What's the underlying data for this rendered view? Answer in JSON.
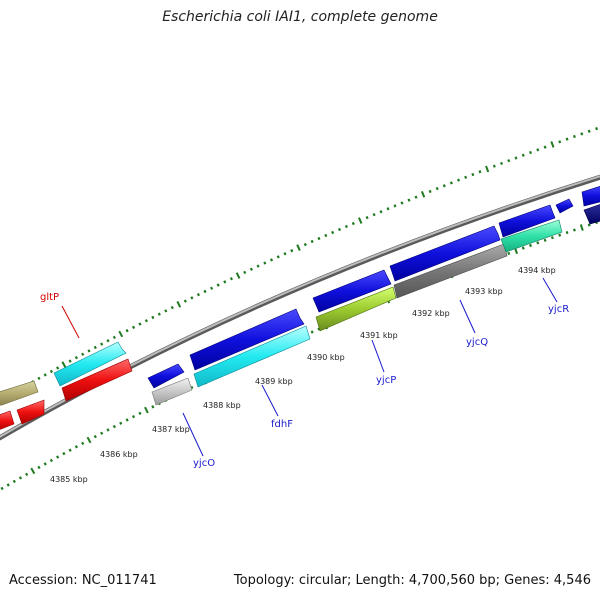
{
  "title": "Escherichia coli IAI1, complete genome",
  "footer": {
    "accession": "Accession: NC_011741",
    "stats": "Topology: circular; Length: 4,700,560 bp; Genes: 4,546"
  },
  "kbp_labels": [
    "4385 kbp",
    "4386 kbp",
    "4387 kbp",
    "4388 kbp",
    "4389 kbp",
    "4390 kbp",
    "4391 kbp",
    "4392 kbp",
    "4393 kbp",
    "4394 kbp"
  ],
  "gene_labels": {
    "gltP": "gltP",
    "yjcO": "yjcO",
    "fdhF": "fdhF",
    "yjcP": "yjcP",
    "yjcQ": "yjcQ",
    "yjcR": "yjcR"
  },
  "colors": {
    "label_red": "#d40000",
    "label_blue": "#1a1acc",
    "tick_green": "#1f7a1f",
    "backbone": "#888888"
  }
}
